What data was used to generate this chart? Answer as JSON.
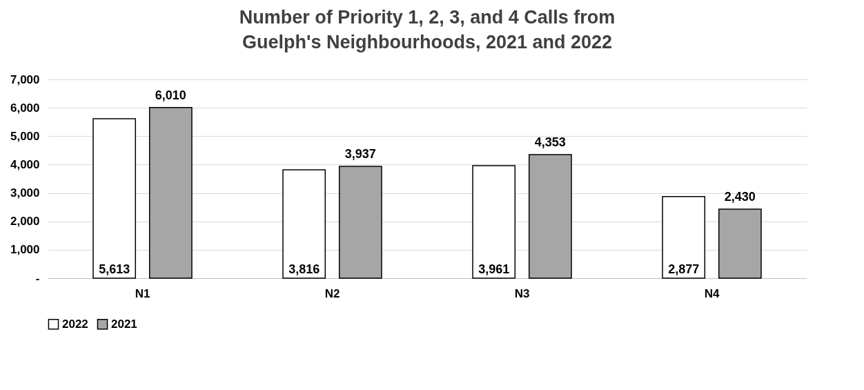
{
  "chart_data": {
    "type": "bar",
    "title": "Number of Priority 1, 2, 3, and 4 Calls from Guelph's Neighbourhoods, 2021 and 2022",
    "categories": [
      "N1",
      "N2",
      "N3",
      "N4"
    ],
    "series": [
      {
        "name": "2022",
        "color": "#ffffff",
        "values": [
          5613,
          3816,
          3961,
          2877
        ],
        "value_labels": [
          "5,613",
          "3,816",
          "3,961",
          "2,877"
        ]
      },
      {
        "name": "2021",
        "color": "#a6a6a6",
        "values": [
          6010,
          3937,
          4353,
          2430
        ],
        "value_labels": [
          "6,010",
          "3,937",
          "4,353",
          "2,430"
        ]
      }
    ],
    "ylim": [
      0,
      7000
    ],
    "yticks": [
      {
        "value": 0,
        "label": "-"
      },
      {
        "value": 1000,
        "label": "1,000"
      },
      {
        "value": 2000,
        "label": "2,000"
      },
      {
        "value": 3000,
        "label": "3,000"
      },
      {
        "value": 4000,
        "label": "4,000"
      },
      {
        "value": 5000,
        "label": "5,000"
      },
      {
        "value": 6000,
        "label": "6,000"
      },
      {
        "value": 7000,
        "label": "7,000"
      }
    ],
    "grid": "y",
    "legend": "bottom"
  }
}
